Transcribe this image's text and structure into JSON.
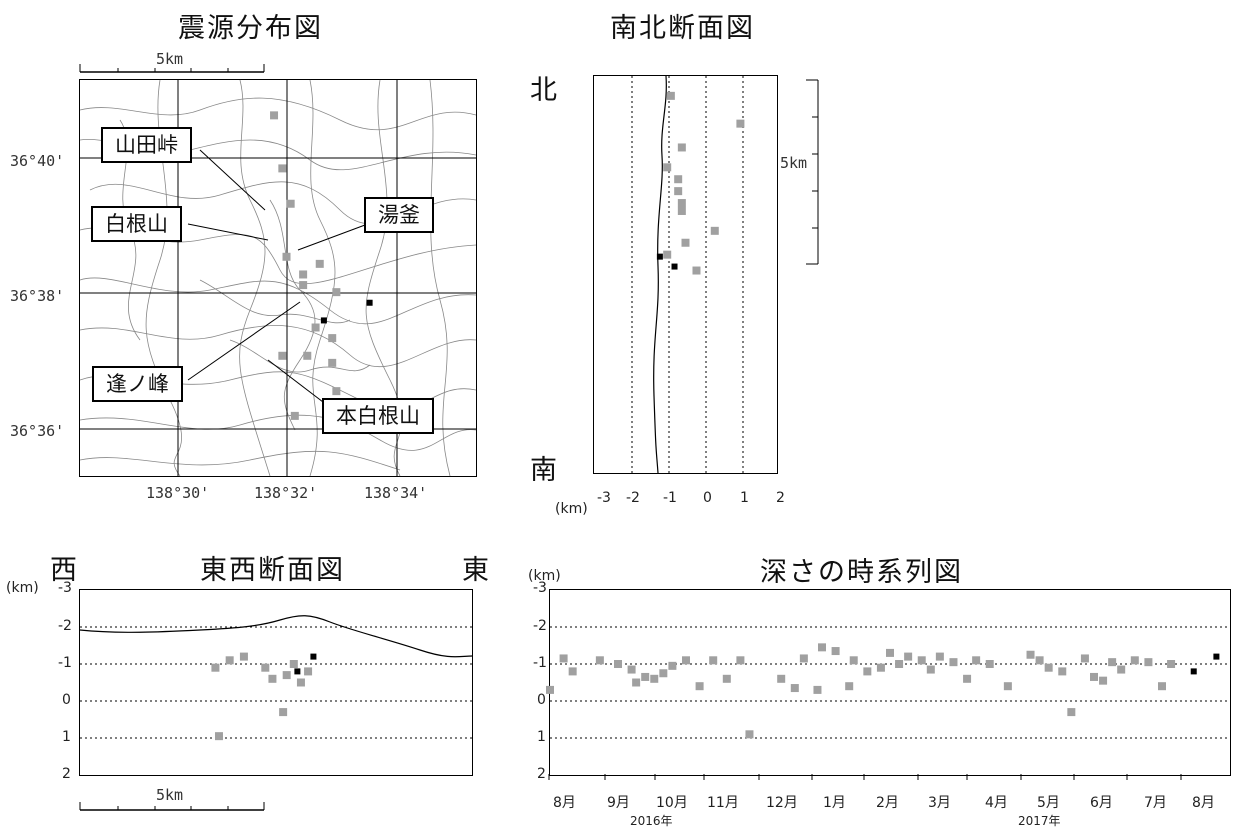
{
  "titles": {
    "epicenter": "震源分布図",
    "ns_section": "南北断面図",
    "ew_section": "東西断面図",
    "timeseries": "深さの時系列図"
  },
  "directions": {
    "north": "北",
    "south": "南",
    "west": "西",
    "east": "東"
  },
  "units": {
    "km": "(km)",
    "scale_5km": "5km"
  },
  "map": {
    "lat_labels": [
      "36°40'",
      "36°38'",
      "36°36'"
    ],
    "lon_labels": [
      "138°30'",
      "138°32'",
      "138°34'"
    ],
    "callouts": [
      "山田峠",
      "白根山",
      "湯釜",
      "逢ノ峰",
      "本白根山"
    ]
  },
  "ns_section": {
    "x_ticks": [
      "-3",
      "-2",
      "-1",
      "0",
      "1",
      "2"
    ]
  },
  "ew_section": {
    "y_ticks": [
      "-3",
      "-2",
      "-1",
      "0",
      "1",
      "2"
    ]
  },
  "timeseries": {
    "y_ticks": [
      "-3",
      "-2",
      "-1",
      "0",
      "1",
      "2"
    ],
    "months": [
      "8月",
      "9月",
      "10月",
      "11月",
      "12月",
      "1月",
      "2月",
      "3月",
      "4月",
      "5月",
      "6月",
      "7月",
      "8月"
    ],
    "years": [
      "2016年",
      "2017年"
    ]
  },
  "colors": {
    "event": "#a0a0a0",
    "recent": "#000000",
    "grid": "#000000"
  },
  "chart_data": [
    {
      "type": "scatter",
      "title": "震源分布図",
      "x_ticks": [
        "138°30'",
        "138°32'",
        "138°34'"
      ],
      "y_ticks": [
        "36°40'",
        "36°38'",
        "36°36'"
      ],
      "scale": "5km",
      "series": [
        {
          "name": "",
          "points": [
            [
              138.52,
              36.69
            ],
            [
              138.522,
              36.675
            ],
            [
              138.524,
              36.665
            ],
            [
              138.523,
              36.65
            ],
            [
              138.527,
              36.645
            ],
            [
              138.531,
              36.648
            ],
            [
              138.535,
              36.64
            ],
            [
              138.53,
              36.63
            ],
            [
              138.534,
              36.627
            ],
            [
              138.528,
              36.622
            ],
            [
              138.522,
              36.622
            ],
            [
              138.534,
              36.62
            ],
            [
              138.535,
              36.612
            ],
            [
              138.525,
              36.605
            ],
            [
              138.527,
              36.642
            ]
          ]
        },
        {
          "name": "",
          "points": [
            [
              138.543,
              36.637
            ],
            [
              138.532,
              36.632
            ]
          ]
        }
      ]
    },
    {
      "type": "scatter",
      "title": "南北断面図",
      "x_ticks": [
        "-3",
        "-2",
        "-1",
        "0",
        "1",
        "2"
      ],
      "xlabel": "(km)",
      "series": [
        {
          "name": "",
          "points": [
            [
              -0.9,
              0.95
            ],
            [
              1.0,
              0.88
            ],
            [
              -0.6,
              0.82
            ],
            [
              -1.0,
              0.77
            ],
            [
              -0.7,
              0.74
            ],
            [
              -0.7,
              0.71
            ],
            [
              -0.6,
              0.68
            ],
            [
              -0.6,
              0.66
            ],
            [
              0.3,
              0.61
            ],
            [
              -0.5,
              0.58
            ],
            [
              -0.2,
              0.51
            ],
            [
              -1.0,
              0.55
            ]
          ]
        },
        {
          "name": "",
          "points": [
            [
              -1.2,
              0.545
            ],
            [
              -0.8,
              0.52
            ]
          ]
        }
      ]
    },
    {
      "type": "scatter",
      "title": "東西断面図",
      "y_ticks": [
        "-3",
        "-2",
        "-1",
        "0",
        "1",
        "2"
      ],
      "ylabel": "(km)",
      "scale": "5km",
      "series": [
        {
          "name": "",
          "points": [
            [
              -2.2,
              -0.9
            ],
            [
              -1.8,
              -1.1
            ],
            [
              -1.4,
              -1.2
            ],
            [
              -0.8,
              -0.9
            ],
            [
              -0.6,
              -0.6
            ],
            [
              -0.2,
              -0.7
            ],
            [
              0.0,
              -1.0
            ],
            [
              0.2,
              -0.5
            ],
            [
              0.4,
              -0.8
            ],
            [
              -0.3,
              0.3
            ],
            [
              -2.1,
              0.95
            ]
          ]
        },
        {
          "name": "",
          "points": [
            [
              0.1,
              -0.8
            ],
            [
              0.55,
              -1.2
            ]
          ]
        }
      ]
    },
    {
      "type": "scatter",
      "title": "深さの時系列図",
      "ylabel": "(km)",
      "ylim": [
        -3,
        2
      ],
      "categories": [
        "8月",
        "9月",
        "10月",
        "11月",
        "12月",
        "1月",
        "2月",
        "3月",
        "4月",
        "5月",
        "6月",
        "7月",
        "8月"
      ],
      "series": [
        {
          "name": "",
          "points": [
            [
              0.0,
              -0.3
            ],
            [
              0.3,
              -1.15
            ],
            [
              0.5,
              -0.8
            ],
            [
              1.1,
              -1.1
            ],
            [
              1.5,
              -1.0
            ],
            [
              1.8,
              -0.85
            ],
            [
              1.9,
              -0.5
            ],
            [
              2.1,
              -0.65
            ],
            [
              2.3,
              -0.6
            ],
            [
              2.5,
              -0.75
            ],
            [
              2.7,
              -0.95
            ],
            [
              3.0,
              -1.1
            ],
            [
              3.3,
              -0.4
            ],
            [
              3.6,
              -1.1
            ],
            [
              3.9,
              -0.6
            ],
            [
              4.2,
              -1.1
            ],
            [
              4.4,
              0.9
            ],
            [
              5.1,
              -0.6
            ],
            [
              5.4,
              -0.35
            ],
            [
              5.6,
              -1.15
            ],
            [
              5.9,
              -0.3
            ],
            [
              6.0,
              -1.45
            ],
            [
              6.3,
              -1.35
            ],
            [
              6.6,
              -0.4
            ],
            [
              6.7,
              -1.1
            ],
            [
              7.0,
              -0.8
            ],
            [
              7.3,
              -0.9
            ],
            [
              7.5,
              -1.3
            ],
            [
              7.7,
              -1.0
            ],
            [
              7.9,
              -1.2
            ],
            [
              8.2,
              -1.1
            ],
            [
              8.4,
              -0.85
            ],
            [
              8.6,
              -1.2
            ],
            [
              8.9,
              -1.05
            ],
            [
              9.2,
              -0.6
            ],
            [
              9.4,
              -1.1
            ],
            [
              9.7,
              -1.0
            ],
            [
              10.1,
              -0.4
            ],
            [
              10.6,
              -1.25
            ],
            [
              10.8,
              -1.1
            ],
            [
              11.0,
              -0.9
            ],
            [
              11.3,
              -0.8
            ],
            [
              11.5,
              0.3
            ],
            [
              11.8,
              -1.15
            ],
            [
              12.0,
              -0.65
            ],
            [
              12.2,
              -0.55
            ],
            [
              12.4,
              -1.05
            ],
            [
              12.6,
              -0.85
            ],
            [
              12.9,
              -1.1
            ],
            [
              13.2,
              -1.05
            ],
            [
              13.5,
              -0.4
            ],
            [
              13.7,
              -1.0
            ]
          ]
        },
        {
          "name": "",
          "points": [
            [
              14.2,
              -0.8
            ],
            [
              14.7,
              -1.2
            ]
          ]
        }
      ]
    }
  ]
}
